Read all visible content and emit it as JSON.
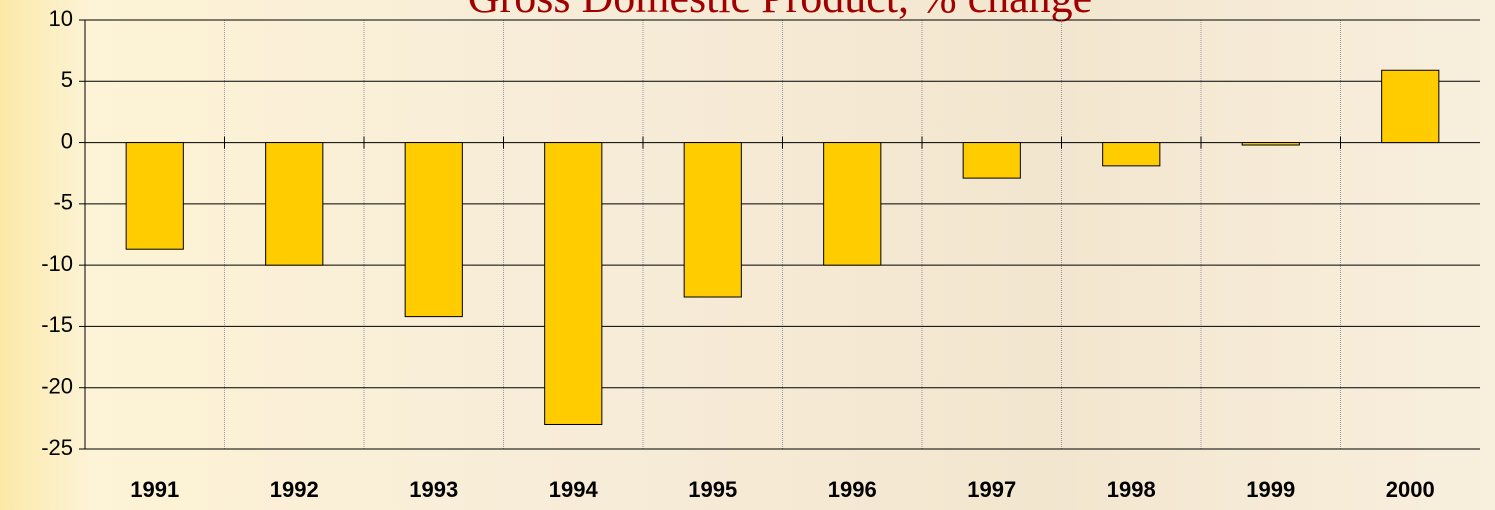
{
  "chart_data": {
    "type": "bar",
    "title": "Gross Domestic Product, % change",
    "categories": [
      "1991",
      "1992",
      "1993",
      "1994",
      "1995",
      "1996",
      "1997",
      "1998",
      "1999",
      "2000"
    ],
    "values": [
      -8.7,
      -10,
      -14.2,
      -23,
      -12.6,
      -10,
      -2.9,
      -1.9,
      -0.2,
      5.9
    ],
    "color": "#ffcc00",
    "ylim": [
      -25,
      10
    ],
    "yticks": [
      -25,
      -20,
      -15,
      -10,
      -5,
      0,
      5,
      10
    ],
    "grid": true
  }
}
